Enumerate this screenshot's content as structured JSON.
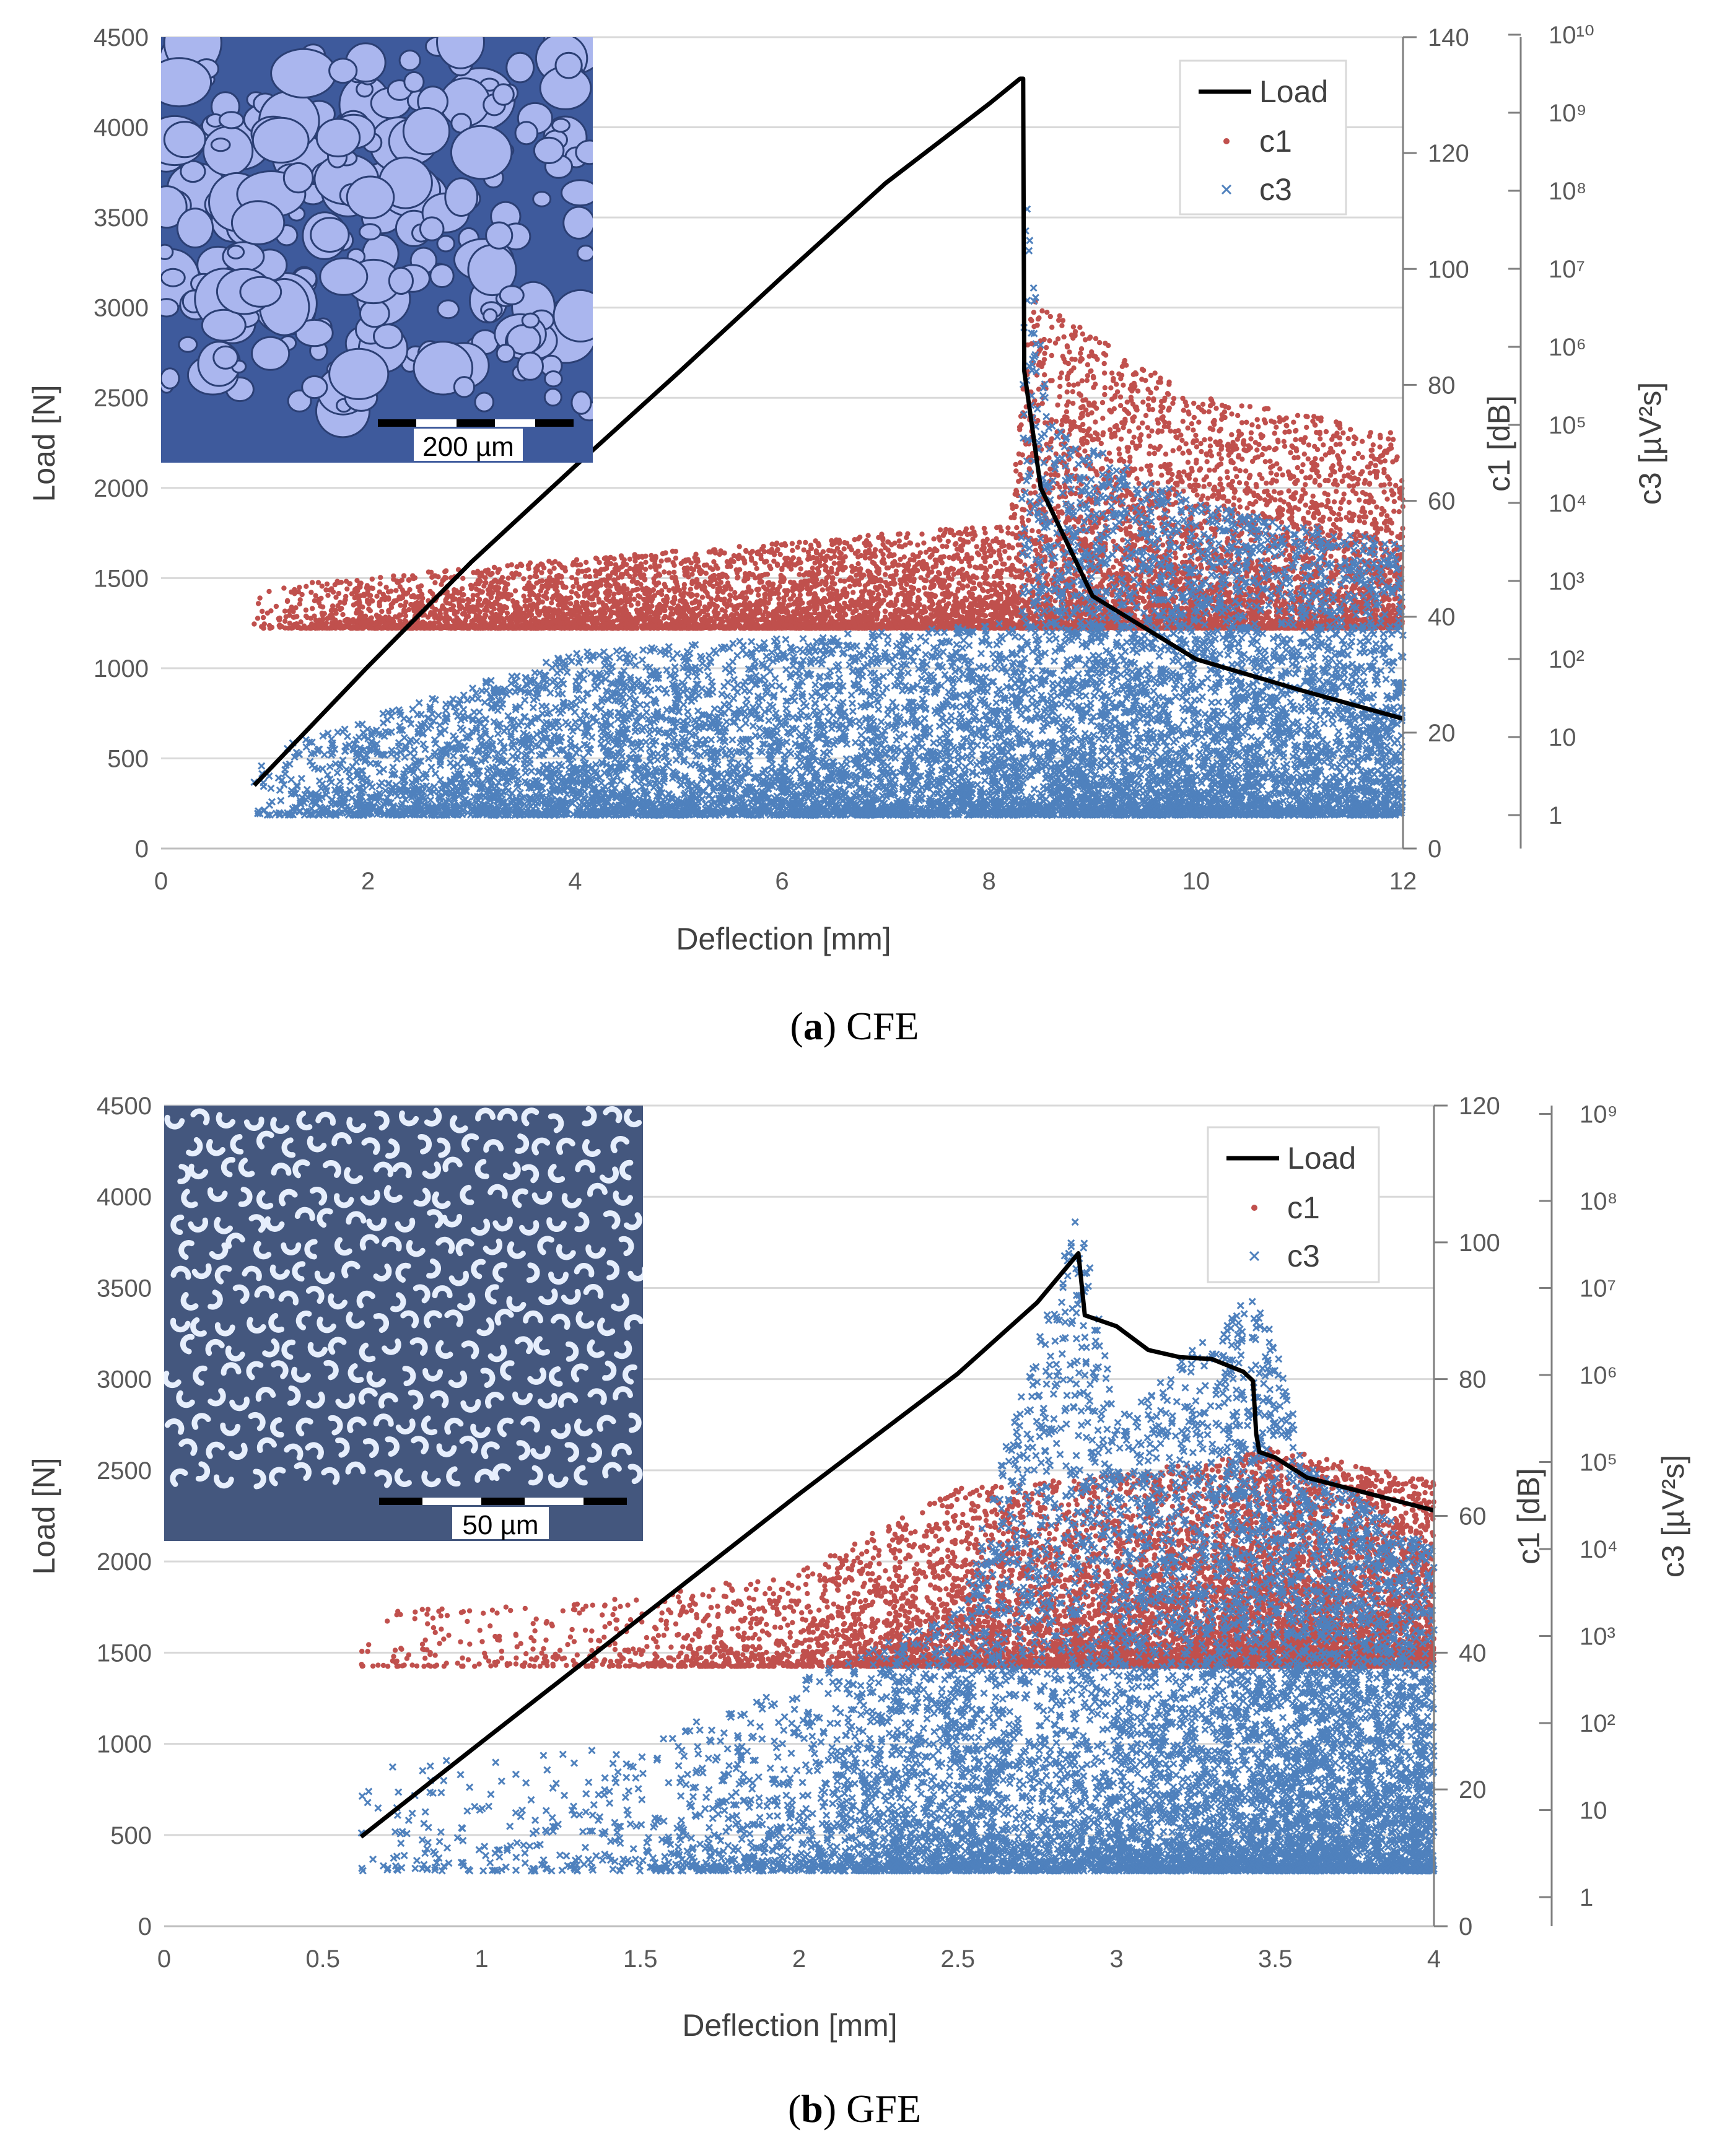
{
  "colors": {
    "load": "#000000",
    "c1": "#c0504d",
    "c3": "#4f81bd",
    "grid": "#d9d9d9",
    "axis": "#7f7f7f",
    "inset_a_bg": "#3e5a9c",
    "inset_a_particle": "#aab6ee",
    "inset_b_bg": "#44577e",
    "inset_b_particle": "#e6eefc"
  },
  "chart_data": [
    {
      "id": "a",
      "type": "scatter",
      "caption": {
        "letter": "a",
        "label": "CFE"
      },
      "xlabel": "Deflection [mm]",
      "ylabel_left": "Load [N]",
      "ylabel_right1": "c1 [dB]",
      "ylabel_right2": "c3 [µV²s]",
      "xlim": [
        0,
        12
      ],
      "xticks": [
        "0",
        "2",
        "4",
        "6",
        "8",
        "10",
        "12"
      ],
      "ylim_left": [
        0,
        4500
      ],
      "yticks_left": [
        "0",
        "500",
        "1000",
        "1500",
        "2000",
        "2500",
        "3000",
        "3500",
        "4000",
        "4500"
      ],
      "ylim_c1": [
        0,
        140
      ],
      "yticks_c1": [
        "0",
        "20",
        "40",
        "60",
        "80",
        "100",
        "120",
        "140"
      ],
      "c3_scale": "log",
      "c3_tick_labels": [
        "1",
        "10",
        "10²",
        "10³",
        "10⁴",
        "10⁵",
        "10⁶",
        "10⁷",
        "10⁸",
        "10⁹",
        "10¹⁰"
      ],
      "legend": [
        "Load",
        "c1",
        "c3"
      ],
      "legend_position": "top-right",
      "inset": {
        "scale_bar_label": "200 µm"
      },
      "series": [
        {
          "name": "Load",
          "kind": "line",
          "x": [
            0.9,
            2.0,
            3.0,
            4.0,
            5.0,
            6.0,
            7.0,
            8.0,
            8.3,
            8.33,
            8.34,
            8.5,
            9.0,
            10.0,
            11.0,
            12.0
          ],
          "y": [
            350,
            1010,
            1590,
            2120,
            2640,
            3170,
            3690,
            4130,
            4270,
            4270,
            2650,
            2000,
            1400,
            1050,
            880,
            720
          ]
        },
        {
          "name": "c1",
          "kind": "scatter",
          "unit": "dB",
          "base": 38,
          "envelope": [
            [
              0.9,
              45
            ],
            [
              4.0,
              50
            ],
            [
              8.2,
              56
            ],
            [
              8.4,
              95
            ],
            [
              10.0,
              78
            ],
            [
              12.0,
              72
            ]
          ],
          "density": [
            [
              0.9,
              0.1
            ],
            [
              2.0,
              0.6
            ],
            [
              4.0,
              1.0
            ],
            [
              8.3,
              1.2
            ],
            [
              8.5,
              2.0
            ],
            [
              12.0,
              1.4
            ]
          ]
        },
        {
          "name": "c3",
          "kind": "scatter",
          "unit": "µV²s",
          "scale": "log",
          "base": 1,
          "envelope": [
            [
              0.9,
              6.0
            ],
            [
              4.0,
              120
            ],
            [
              8.3,
              300
            ],
            [
              8.35,
              100000000.0
            ],
            [
              8.6,
              100000.0
            ],
            [
              10.0,
              10000.0
            ],
            [
              12.0,
              3000
            ]
          ],
          "density": [
            [
              0.9,
              0.1
            ],
            [
              2.0,
              0.6
            ],
            [
              4.0,
              1.0
            ],
            [
              8.3,
              1.3
            ],
            [
              8.5,
              2.4
            ],
            [
              12.0,
              1.4
            ]
          ]
        }
      ]
    },
    {
      "id": "b",
      "type": "scatter",
      "caption": {
        "letter": "b",
        "label": "GFE"
      },
      "xlabel": "Deflection [mm]",
      "ylabel_left": "Load [N]",
      "ylabel_right1": "c1 [dB]",
      "ylabel_right2": "c3 [µV²s]",
      "xlim": [
        0,
        4
      ],
      "xticks": [
        "0",
        "0.5",
        "1",
        "1.5",
        "2",
        "2.5",
        "3",
        "3.5",
        "4"
      ],
      "ylim_left": [
        0,
        4500
      ],
      "yticks_left": [
        "0",
        "500",
        "1000",
        "1500",
        "2000",
        "2500",
        "3000",
        "3500",
        "4000",
        "4500"
      ],
      "ylim_c1": [
        0,
        120
      ],
      "yticks_c1": [
        "0",
        "20",
        "40",
        "60",
        "80",
        "100",
        "120"
      ],
      "c3_scale": "log",
      "c3_tick_labels": [
        "1",
        "10",
        "10²",
        "10³",
        "10⁴",
        "10⁵",
        "10⁶",
        "10⁷",
        "10⁸",
        "10⁹"
      ],
      "legend": [
        "Load",
        "c1",
        "c3"
      ],
      "legend_position": "top-right",
      "inset": {
        "scale_bar_label": "50 µm"
      },
      "series": [
        {
          "name": "Load",
          "kind": "line",
          "x": [
            0.62,
            1.0,
            1.5,
            2.0,
            2.5,
            2.75,
            2.88,
            2.9,
            3.0,
            3.1,
            3.2,
            3.3,
            3.4,
            3.43,
            3.44,
            3.45,
            3.5,
            3.6,
            3.8,
            4.0
          ],
          "y": [
            490,
            1010,
            1690,
            2370,
            3030,
            3420,
            3690,
            3350,
            3290,
            3160,
            3120,
            3110,
            3040,
            2990,
            2700,
            2600,
            2570,
            2460,
            2370,
            2280
          ]
        },
        {
          "name": "c1",
          "kind": "scatter",
          "unit": "dB",
          "base": 38,
          "envelope": [
            [
              0.62,
              46
            ],
            [
              1.5,
              48
            ],
            [
              2.0,
              52
            ],
            [
              2.5,
              64
            ],
            [
              3.0,
              66
            ],
            [
              3.5,
              70
            ],
            [
              4.0,
              65
            ]
          ],
          "density": [
            [
              0.62,
              0.05
            ],
            [
              1.5,
              0.15
            ],
            [
              2.0,
              0.5
            ],
            [
              2.6,
              1.2
            ],
            [
              3.0,
              1.4
            ],
            [
              3.5,
              2.2
            ],
            [
              4.0,
              1.8
            ]
          ]
        },
        {
          "name": "c3",
          "kind": "scatter",
          "unit": "µV²s",
          "scale": "log",
          "base": 2,
          "envelope": [
            [
              0.62,
              30
            ],
            [
              1.5,
              60
            ],
            [
              2.0,
              300
            ],
            [
              2.5,
              2000
            ],
            [
              2.88,
              100000000.0
            ],
            [
              3.0,
              300000.0
            ],
            [
              3.45,
              10000000.0
            ],
            [
              3.6,
              100000.0
            ],
            [
              4.0,
              10000.0
            ]
          ],
          "density": [
            [
              0.62,
              0.05
            ],
            [
              1.5,
              0.15
            ],
            [
              2.0,
              0.6
            ],
            [
              2.6,
              1.3
            ],
            [
              3.0,
              1.6
            ],
            [
              3.5,
              2.4
            ],
            [
              4.0,
              2.0
            ]
          ]
        }
      ]
    }
  ]
}
